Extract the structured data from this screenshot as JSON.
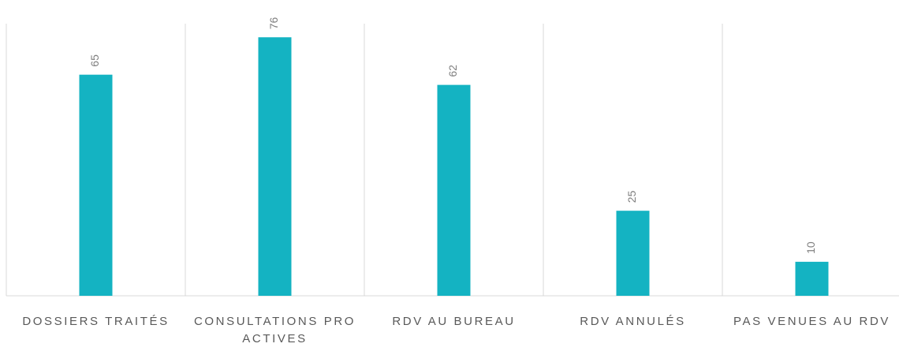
{
  "chart_data": {
    "type": "bar",
    "categories": [
      "DOSSIERS TRAITÉS",
      "CONSULTATIONS PRO ACTIVES",
      "RDV AU BUREAU",
      "RDV ANNULÉS",
      "PAS VENUES AU RDV"
    ],
    "values": [
      65,
      76,
      62,
      25,
      10
    ],
    "color": "#14b3c2",
    "ylim": [
      0,
      80
    ]
  }
}
